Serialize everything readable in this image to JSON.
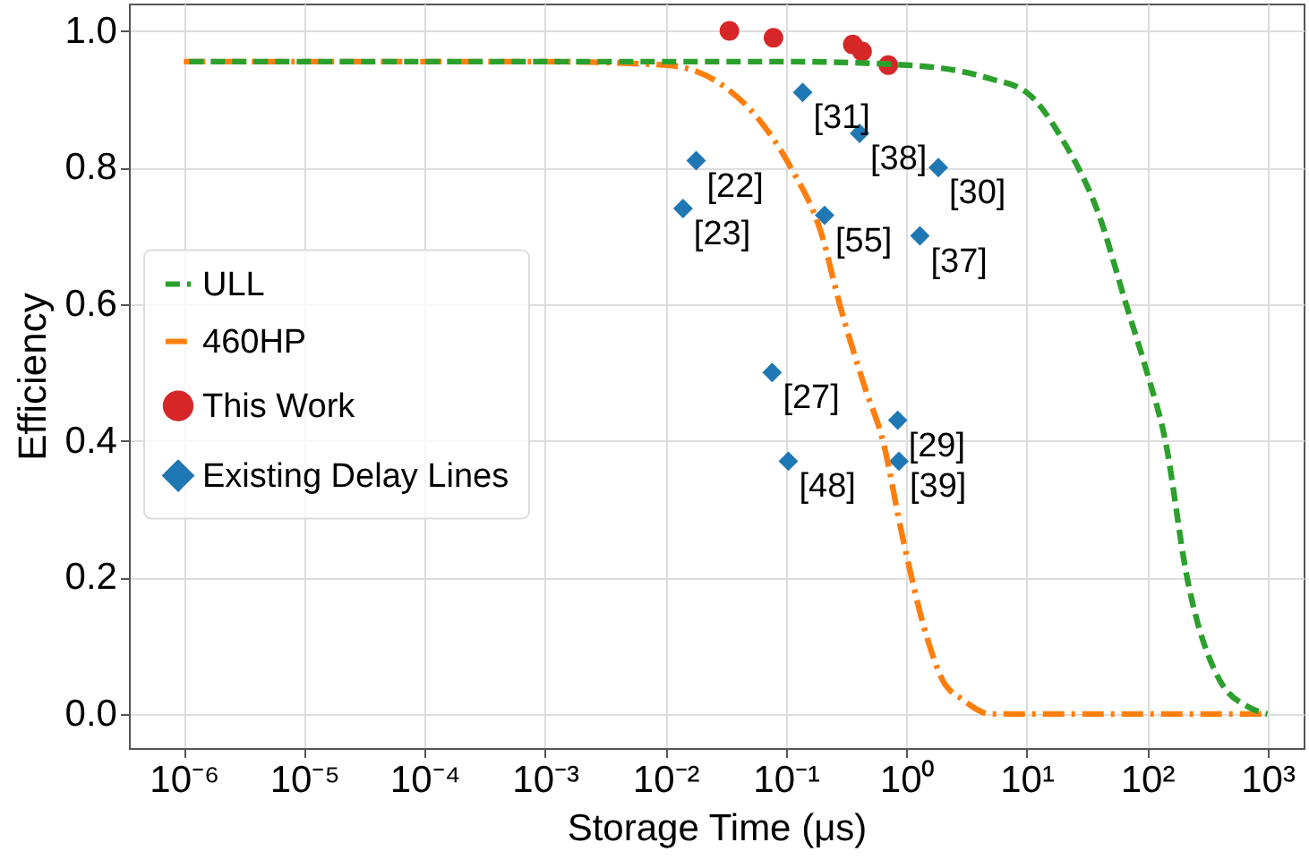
{
  "chart_data": {
    "type": "line",
    "xlabel": "Storage Time (μs)",
    "ylabel": "Efficiency",
    "log": "x",
    "grid": true,
    "legend": "left",
    "xlim": [
      3.5e-07,
      2000
    ],
    "ylim": [
      -0.05,
      1.04
    ],
    "xticks": [
      {
        "value": 1e-06,
        "label": "10⁻⁶"
      },
      {
        "value": 1e-05,
        "label": "10⁻⁵"
      },
      {
        "value": 0.0001,
        "label": "10⁻⁴"
      },
      {
        "value": 0.001,
        "label": "10⁻³"
      },
      {
        "value": 0.01,
        "label": "10⁻²"
      },
      {
        "value": 0.1,
        "label": "10⁻¹"
      },
      {
        "value": 1,
        "label": "10⁰"
      },
      {
        "value": 10,
        "label": "10¹"
      },
      {
        "value": 100,
        "label": "10²"
      },
      {
        "value": 1000,
        "label": "10³"
      }
    ],
    "yticks": [
      {
        "value": 0,
        "label": "0.0"
      },
      {
        "value": 0.2,
        "label": "0.2"
      },
      {
        "value": 0.4,
        "label": "0.4"
      },
      {
        "value": 0.6,
        "label": "0.6"
      },
      {
        "value": 0.8,
        "label": "0.8"
      },
      {
        "value": 1,
        "label": "1.0"
      }
    ],
    "series": [
      {
        "name": "ULL",
        "color": "#2ca02c",
        "line_style": "dashed",
        "x": [
          1e-06,
          0.001,
          0.1,
          1,
          3,
          5,
          10,
          20,
          40,
          67,
          100,
          142,
          215,
          400,
          700,
          1000
        ],
        "values": [
          0.955,
          0.955,
          0.955,
          0.95,
          0.94,
          0.93,
          0.91,
          0.84,
          0.73,
          0.6,
          0.5,
          0.4,
          0.2,
          0.05,
          0.01,
          0.0
        ]
      },
      {
        "name": "460HP",
        "color": "#ff7f0e",
        "line_style": "dashdot",
        "x": [
          1e-06,
          0.001,
          0.01,
          0.03,
          0.06,
          0.11,
          0.2,
          0.28,
          0.45,
          0.64,
          0.93,
          1.5,
          2,
          3,
          5,
          1000
        ],
        "values": [
          0.955,
          0.955,
          0.95,
          0.92,
          0.87,
          0.8,
          0.7,
          0.6,
          0.48,
          0.4,
          0.26,
          0.11,
          0.05,
          0.02,
          0.0,
          0.0
        ]
      },
      {
        "name": "This Work",
        "type": "scatter",
        "marker": "circle",
        "color": "#d62728",
        "x": [
          0.034,
          0.079,
          0.36,
          0.43,
          0.71
        ],
        "values": [
          1.0,
          0.99,
          0.98,
          0.97,
          0.95
        ]
      },
      {
        "name": "Existing Delay Lines",
        "type": "scatter",
        "marker": "diamond",
        "color": "#1f77b4",
        "x": [
          0.138,
          0.41,
          0.018,
          1.85,
          0.014,
          0.21,
          1.3,
          0.077,
          0.85,
          0.105,
          0.87
        ],
        "values": [
          0.91,
          0.85,
          0.81,
          0.8,
          0.74,
          0.73,
          0.7,
          0.5,
          0.43,
          0.37,
          0.37
        ]
      }
    ],
    "annotations": [
      {
        "text": "[31]",
        "x": 0.138,
        "y": 0.91
      },
      {
        "text": "[38]",
        "x": 0.41,
        "y": 0.85
      },
      {
        "text": "[22]",
        "x": 0.018,
        "y": 0.81
      },
      {
        "text": "[30]",
        "x": 1.85,
        "y": 0.8
      },
      {
        "text": "[23]",
        "x": 0.014,
        "y": 0.74
      },
      {
        "text": "[55]",
        "x": 0.21,
        "y": 0.73
      },
      {
        "text": "[37]",
        "x": 1.3,
        "y": 0.7
      },
      {
        "text": "[27]",
        "x": 0.077,
        "y": 0.5
      },
      {
        "text": "[29]",
        "x": 0.85,
        "y": 0.43
      },
      {
        "text": "[48]",
        "x": 0.105,
        "y": 0.37
      },
      {
        "text": "[39]",
        "x": 0.87,
        "y": 0.37
      }
    ]
  }
}
